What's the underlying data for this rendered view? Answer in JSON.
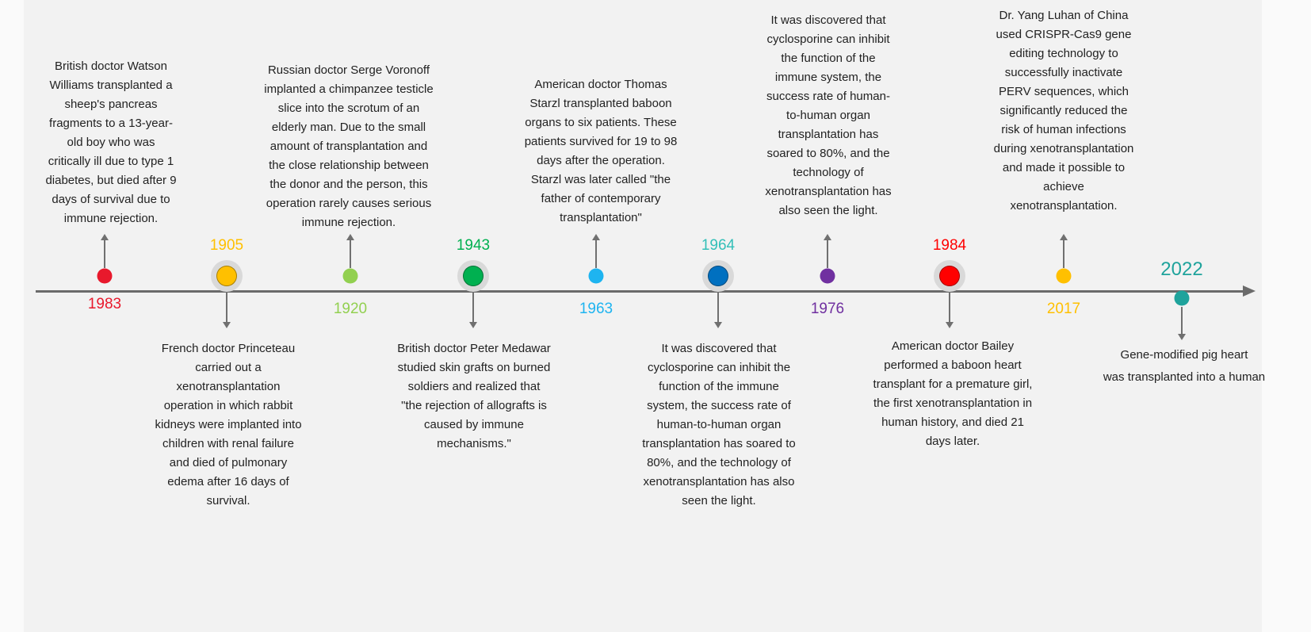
{
  "timeline": {
    "events": [
      {
        "year": "1983",
        "color": "#e8192c",
        "size": "small",
        "year_pos": "below",
        "desc_pos": "above",
        "lines": [
          "British doctor Watson",
          "Williams transplanted a",
          "sheep's pancreas",
          "fragments to a 13-year-",
          "old boy who was",
          "critically ill due to type 1",
          "diabetes, but died after 9",
          "days of survival due to",
          "immune rejection."
        ]
      },
      {
        "year": "1905",
        "color": "#ffc000",
        "size": "large",
        "year_pos": "above",
        "desc_pos": "below",
        "lines": [
          "French doctor Princeteau",
          "carried out a",
          "xenotransplantation",
          "operation in which rabbit",
          "kidneys were implanted into",
          "children with renal failure",
          "and died of pulmonary",
          "edema after 16 days of",
          "survival."
        ]
      },
      {
        "year": "1920",
        "color": "#92d050",
        "size": "small",
        "year_pos": "below",
        "desc_pos": "above",
        "lines": [
          "Russian doctor Serge Voronoff",
          "implanted a chimpanzee testicle",
          "slice into the scrotum of an",
          "elderly man. Due to the small",
          "amount of transplantation and",
          "the close relationship between",
          "the donor and the person, this",
          "operation rarely causes serious",
          "immune rejection."
        ]
      },
      {
        "year": "1943",
        "color": "#00b050",
        "size": "large",
        "year_pos": "above",
        "desc_pos": "below",
        "lines": [
          "British doctor Peter Medawar",
          "studied skin grafts on burned",
          "soldiers and realized that",
          "\"the rejection of allografts is",
          "caused by immune",
          "mechanisms.\""
        ]
      },
      {
        "year": "1963",
        "color": "#1eb4f0",
        "size": "small",
        "year_pos": "below",
        "desc_pos": "above",
        "lines": [
          "American doctor Thomas",
          "Starzl transplanted baboon",
          "organs to six patients. These",
          "patients survived for 19 to 98",
          "days after the operation.",
          "Starzl was later called \"the",
          "father of contemporary",
          "transplantation\""
        ]
      },
      {
        "year": "1964",
        "color": "#0070c0",
        "year_color": "#33bfb8",
        "size": "large",
        "year_pos": "above",
        "desc_pos": "below",
        "lines": [
          "It was discovered that",
          "cyclosporine can inhibit the",
          "function of the immune",
          "system, the success rate of",
          "human-to-human organ",
          "transplantation has soared to",
          "80%, and the technology of",
          "xenotransplantation has also",
          "seen the light."
        ]
      },
      {
        "year": "1976",
        "color": "#7030a0",
        "size": "small",
        "year_pos": "below",
        "desc_pos": "above",
        "lines": [
          "It was discovered that",
          "cyclosporine can inhibit",
          "the function of the",
          "immune system, the",
          "success rate of human-",
          "to-human organ",
          "transplantation has",
          "soared to 80%, and the",
          "technology of",
          "xenotransplantation has",
          "also seen the light."
        ]
      },
      {
        "year": "1984",
        "color": "#ff0000",
        "size": "large",
        "year_pos": "above",
        "desc_pos": "below",
        "lines": [
          "American doctor Bailey",
          "performed a baboon heart",
          "transplant for a premature girl,",
          "the first xenotransplantation in",
          "human history, and died 21",
          "days later."
        ]
      },
      {
        "year": "2017",
        "color": "#ffc000",
        "size": "small",
        "year_pos": "below",
        "desc_pos": "above",
        "lines": [
          "Dr. Yang Luhan of China",
          "used CRISPR-Cas9 gene",
          "editing technology to",
          "successfully inactivate",
          "PERV sequences, which",
          "significantly reduced the",
          "risk of human infections",
          "during xenotransplantation",
          "and made it possible to",
          "achieve",
          "xenotransplantation."
        ]
      },
      {
        "year": "2022",
        "color": "#1fa39c",
        "size": "small",
        "year_pos": "above",
        "desc_pos": "below",
        "lines": [
          "Gene-modified pig heart",
          "was transplanted into a human"
        ]
      }
    ]
  }
}
